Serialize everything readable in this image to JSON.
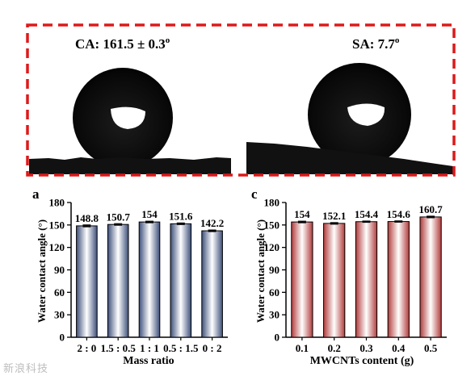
{
  "photos": {
    "ca_label": "CA: 161.5 ± 0.3",
    "ca_degree": "o",
    "sa_label": "SA: 7.7",
    "sa_degree": "o",
    "frame_color": "#dd1a1a"
  },
  "chart_data": [
    {
      "type": "bar",
      "panel_label": "a",
      "categories": [
        "2 : 0",
        "1.5 : 0.5",
        "1 : 1",
        "0.5 : 1.5",
        "0 : 2"
      ],
      "values": [
        148.8,
        150.7,
        154,
        151.6,
        142.2
      ],
      "data_labels": [
        "148.8",
        "150.7",
        "154",
        "151.6",
        "142.2"
      ],
      "errors": [
        1.2,
        1.0,
        1.0,
        1.0,
        1.0
      ],
      "xlabel": "Mass ratio",
      "ylabel": "Water contact angle (°)",
      "ylim": [
        0,
        180
      ],
      "yticks": [
        0,
        30,
        60,
        90,
        120,
        150,
        180
      ],
      "bar_color": "#3d4f7a",
      "grid": false
    },
    {
      "type": "bar",
      "panel_label": "c",
      "categories": [
        "0.1",
        "0.2",
        "0.3",
        "0.4",
        "0.5"
      ],
      "values": [
        154,
        152.1,
        154.4,
        154.6,
        160.7
      ],
      "data_labels": [
        "154",
        "152.1",
        "154.4",
        "154.6",
        "160.7"
      ],
      "errors": [
        1.0,
        1.0,
        0.8,
        0.8,
        1.0
      ],
      "xlabel": "MWCNTs content (g)",
      "ylabel": "Water contact angle (°)",
      "ylim": [
        0,
        180
      ],
      "yticks": [
        0,
        30,
        60,
        90,
        120,
        150,
        180
      ],
      "bar_color": "#b23b3b",
      "grid": false
    }
  ],
  "watermark": "新浪科技"
}
